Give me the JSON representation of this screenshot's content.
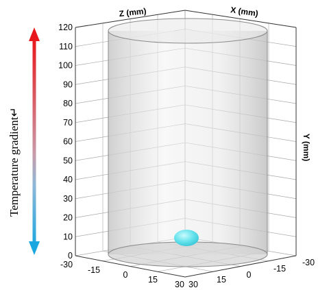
{
  "gradient_label": "Temperature gradient↵",
  "axes": {
    "z_title": "Z (mm)",
    "x_title": "X (mm)",
    "y_title": "Y (mm)",
    "y_ticks": [
      "120",
      "110",
      "100",
      "90",
      "80",
      "70",
      "60",
      "50",
      "40",
      "30",
      "20",
      "10",
      "0"
    ],
    "z_ticks": [
      "-30",
      "-15",
      "0",
      "15",
      "30"
    ],
    "x_ticks": [
      "30",
      "15",
      "0",
      "-15",
      "-30"
    ]
  },
  "colors": {
    "gradient_top": "#e8191c",
    "gradient_bottom": "#1aa7e0",
    "cylinder": "#d9d9d9",
    "droplet": "#5fe0ea"
  }
}
